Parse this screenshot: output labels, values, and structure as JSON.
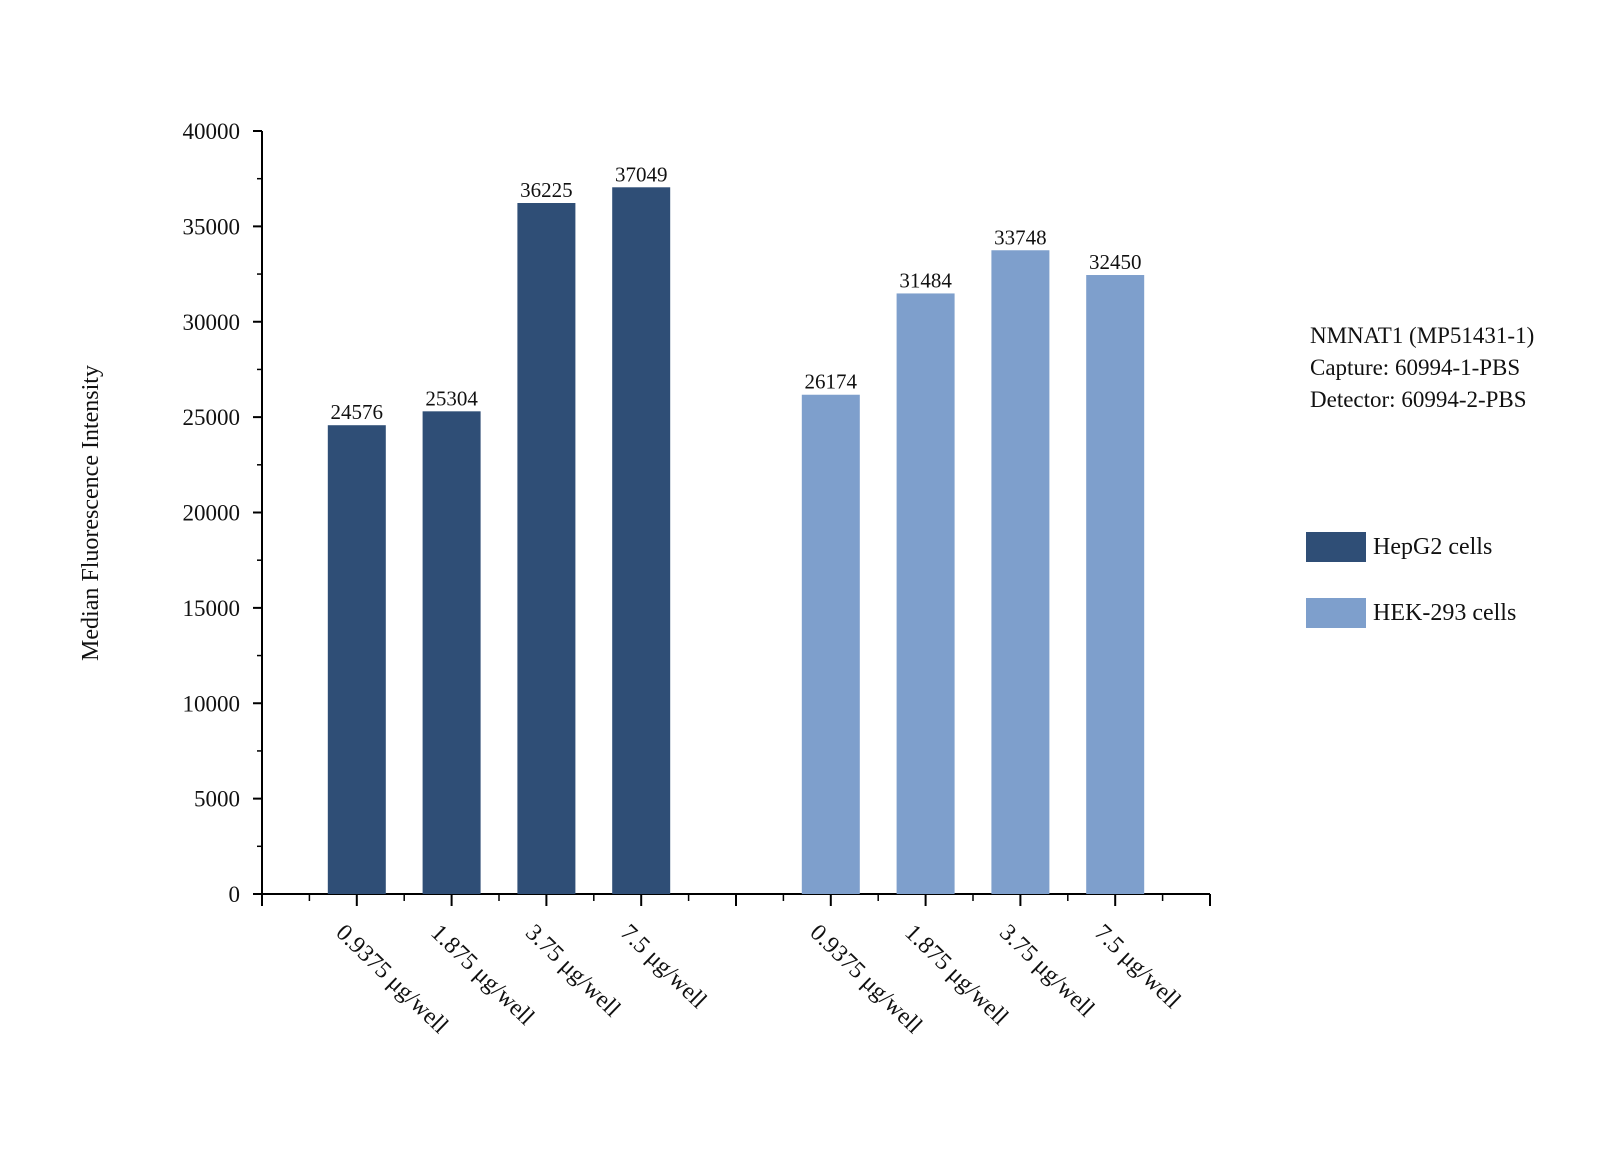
{
  "chart_data": {
    "type": "bar",
    "ylabel": "Median Fluorescence Intensity",
    "xlabel": "",
    "ylim": [
      0,
      40000
    ],
    "y_ticks": [
      0,
      5000,
      10000,
      15000,
      20000,
      25000,
      30000,
      35000,
      40000
    ],
    "categories": [
      "0.9375 μg/well",
      "1.875 μg/well",
      "3.75 μg/well",
      "7.5 μg/well"
    ],
    "series": [
      {
        "name": "HepG2 cells",
        "color": "#2F4E76",
        "values": [
          24576,
          25304,
          36225,
          37049
        ]
      },
      {
        "name": "HEK-293 cells",
        "color": "#7E9FCC",
        "values": [
          26174,
          31484,
          33748,
          32450
        ]
      }
    ],
    "data_labels": true,
    "grid": false,
    "legend_position": "right"
  },
  "info": {
    "line1": "NMNAT1 (MP51431-1)",
    "line2": "Capture: 60994-1-PBS",
    "line3": "Detector: 60994-2-PBS"
  },
  "legend": {
    "items": [
      {
        "label": "HepG2 cells",
        "color": "#2F4E76"
      },
      {
        "label": "HEK-293 cells",
        "color": "#7E9FCC"
      }
    ]
  }
}
